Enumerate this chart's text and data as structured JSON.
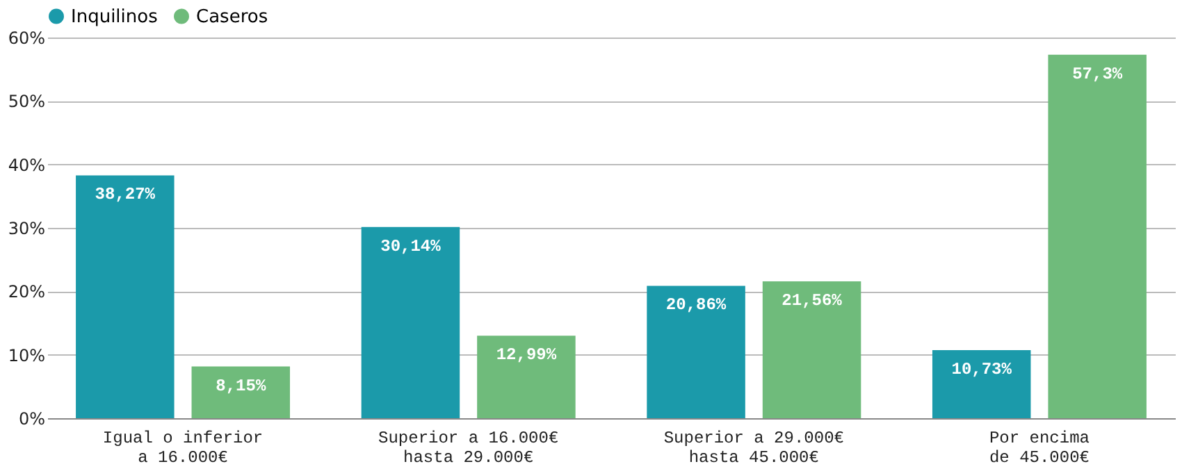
{
  "chart_data": {
    "type": "bar",
    "categories": [
      "Igual o inferior\na 16.000€",
      "Superior a 16.000€\nhasta 29.000€",
      "Superior a 29.000€\nhasta 45.000€",
      "Por encima\nde 45.000€"
    ],
    "series": [
      {
        "name": "Inquilinos",
        "color": "#1b9aaa",
        "values": [
          38.27,
          30.14,
          20.86,
          10.73
        ],
        "value_labels": [
          "38,27%",
          "30,14%",
          "20,86%",
          "10,73%"
        ]
      },
      {
        "name": "Caseros",
        "color": "#6fbb7b",
        "values": [
          8.15,
          12.99,
          21.56,
          57.3
        ],
        "value_labels": [
          "8,15%",
          "12,99%",
          "21,56%",
          "57,3%"
        ]
      }
    ],
    "ylim": [
      0,
      60
    ],
    "yticks": [
      {
        "value": 0,
        "label": "0%"
      },
      {
        "value": 10,
        "label": "10%"
      },
      {
        "value": 20,
        "label": "20%"
      },
      {
        "value": 30,
        "label": "30%"
      },
      {
        "value": 40,
        "label": "40%"
      },
      {
        "value": 50,
        "label": "50%"
      },
      {
        "value": 60,
        "label": "60%"
      }
    ],
    "grid": "y",
    "legend": "top left"
  }
}
